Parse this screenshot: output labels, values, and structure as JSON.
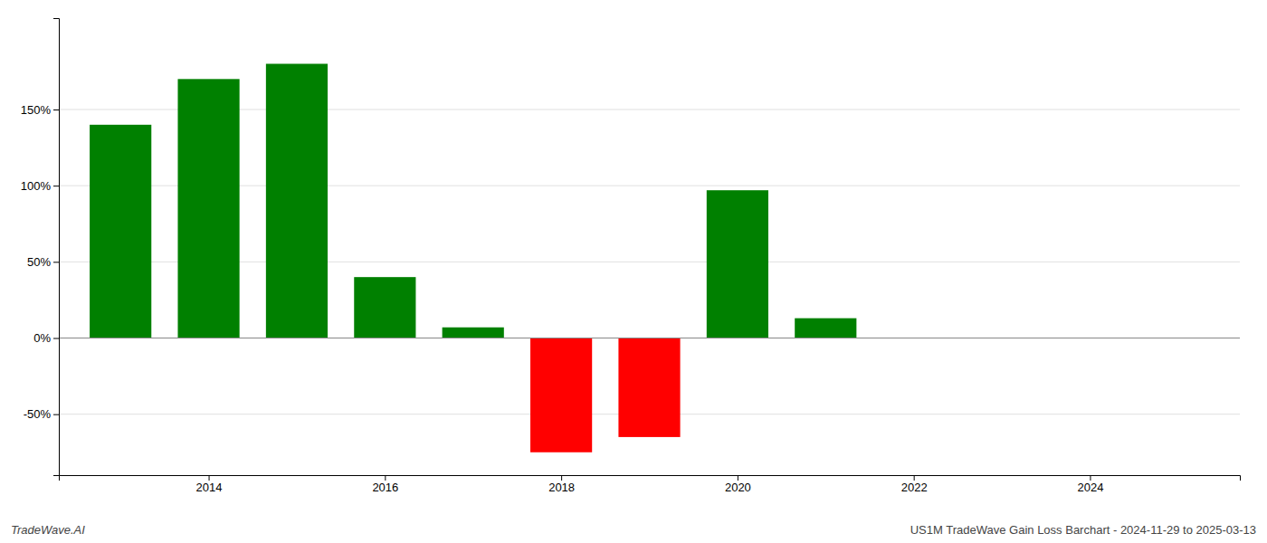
{
  "chart_data": {
    "type": "bar",
    "x": [
      2013,
      2014,
      2015,
      2016,
      2017,
      2018,
      2019,
      2020,
      2021
    ],
    "values": [
      1.4,
      1.7,
      1.8,
      0.4,
      0.07,
      -0.75,
      -0.65,
      0.97,
      0.13
    ],
    "colors": [
      "#008000",
      "#008000",
      "#008000",
      "#008000",
      "#008000",
      "#ff0000",
      "#ff0000",
      "#008000",
      "#008000"
    ],
    "xlim": [
      2012.3,
      2025.7
    ],
    "xticks": [
      2014,
      2016,
      2018,
      2020,
      2022,
      2024
    ],
    "ylim": [
      -0.9,
      2.1
    ],
    "yticks": [
      {
        "value": -0.5,
        "label": "-50%"
      },
      {
        "value": 0.0,
        "label": "0%"
      },
      {
        "value": 0.5,
        "label": "50%"
      },
      {
        "value": 1.0,
        "label": "100%"
      },
      {
        "value": 1.5,
        "label": "150%"
      }
    ],
    "grid": true,
    "annotations": [
      "TradeWave.AI",
      "US1M TradeWave Gain Loss Barchart - 2024-11-29 to 2025-03-13"
    ]
  }
}
